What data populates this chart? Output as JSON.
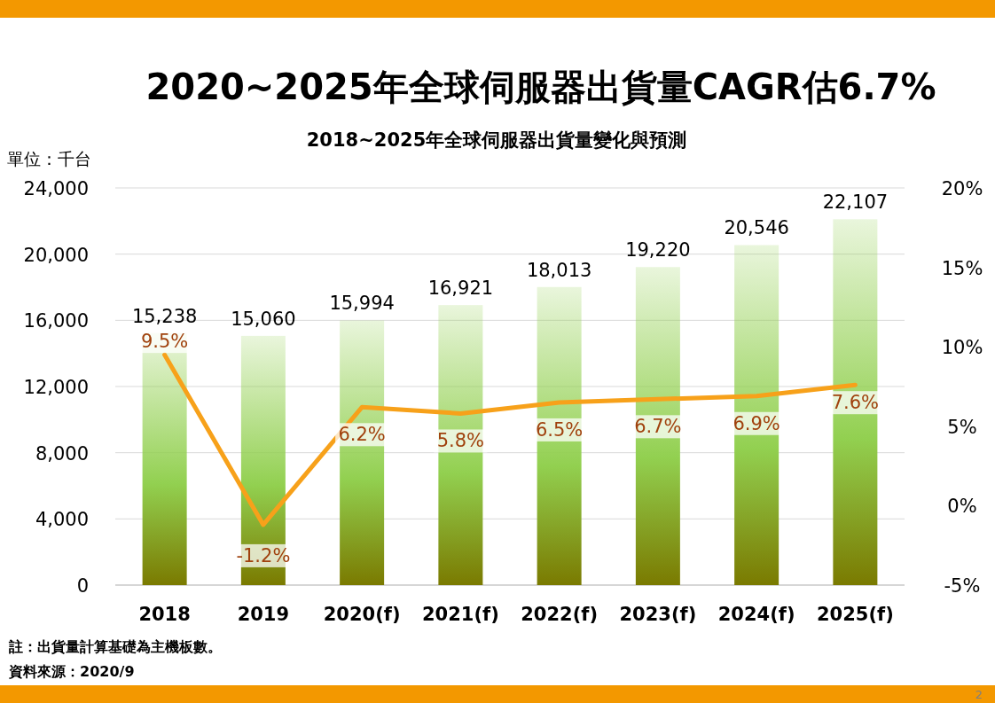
{
  "chart_data": {
    "type": "bar",
    "title": "2020~2025年全球伺服器出貨量CAGR估6.7%",
    "subtitle": "2018~2025年全球伺服器出貨量變化與預測",
    "ylabel": "單位：千台",
    "categories": [
      "2018",
      "2019",
      "2020(f)",
      "2021(f)",
      "2022(f)",
      "2023(f)",
      "2024(f)",
      "2025(f)"
    ],
    "series": [
      {
        "color": "#92d050",
        "values": [
          15238,
          15060,
          15994,
          16921,
          18013,
          19220,
          20546,
          22107
        ],
        "value_labels": [
          "15,238",
          "15,060",
          "15,994",
          "16,921",
          "18,013",
          "19,220",
          "20,546",
          "22,107"
        ]
      },
      {
        "type": "line",
        "axis": "y2",
        "color": "#f7a11a",
        "values": [
          9.5,
          -1.2,
          6.2,
          5.8,
          6.5,
          6.7,
          6.9,
          7.6
        ],
        "value_labels": [
          "9.5%",
          "-1.2%",
          "6.2%",
          "5.8%",
          "6.5%",
          "6.7%",
          "6.9%",
          "7.6%"
        ]
      }
    ],
    "ylim": [
      0,
      24000
    ],
    "yticks": [
      {
        "value": 0,
        "label": "0"
      },
      {
        "value": 4000,
        "label": "4,000"
      },
      {
        "value": 8000,
        "label": "8,000"
      },
      {
        "value": 12000,
        "label": "12,000"
      },
      {
        "value": 16000,
        "label": "16,000"
      },
      {
        "value": 20000,
        "label": "20,000"
      },
      {
        "value": 24000,
        "label": "24,000"
      }
    ],
    "y2lim": [
      -5,
      20
    ],
    "y2ticks": [
      {
        "value": -5,
        "label": "-5%"
      },
      {
        "value": 0,
        "label": "0%"
      },
      {
        "value": 5,
        "label": "5%"
      },
      {
        "value": 10,
        "label": "10%"
      },
      {
        "value": 15,
        "label": "15%"
      },
      {
        "value": 20,
        "label": "20%"
      }
    ],
    "grid": "y",
    "marker": "none",
    "annotations": [
      "註：出貨量計算基礎為主機板數。",
      "資料來源：2020/9",
      "2"
    ]
  }
}
